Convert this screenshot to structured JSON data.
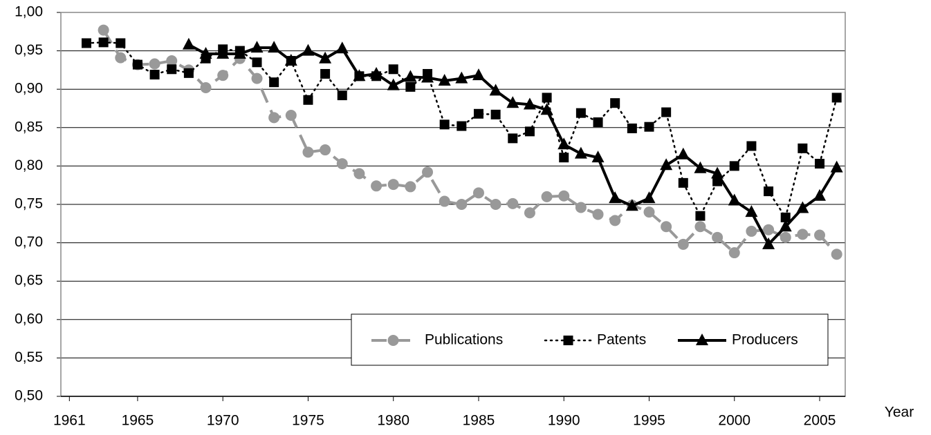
{
  "chart_data": {
    "type": "line",
    "x_label": "Year",
    "x": [
      1962,
      1963,
      1964,
      1965,
      1966,
      1967,
      1968,
      1969,
      1970,
      1971,
      1972,
      1973,
      1974,
      1975,
      1976,
      1977,
      1978,
      1979,
      1980,
      1981,
      1982,
      1983,
      1984,
      1985,
      1986,
      1987,
      1988,
      1989,
      1990,
      1991,
      1992,
      1993,
      1994,
      1995,
      1996,
      1997,
      1998,
      1999,
      2000,
      2001,
      2002,
      2003,
      2004,
      2005,
      2006
    ],
    "series": [
      {
        "name": "Publications",
        "color": "#999999",
        "marker": "circle",
        "line_style": "dashed",
        "values": [
          null,
          0.977,
          0.941,
          0.932,
          0.933,
          0.937,
          0.925,
          0.902,
          0.918,
          0.94,
          0.914,
          0.863,
          0.866,
          0.818,
          0.821,
          0.803,
          0.79,
          0.774,
          0.776,
          0.773,
          0.792,
          0.754,
          0.75,
          0.765,
          0.75,
          0.751,
          0.739,
          0.76,
          0.761,
          0.746,
          0.737,
          0.729,
          0.749,
          0.74,
          0.721,
          0.698,
          0.721,
          0.707,
          0.687,
          0.715,
          0.717,
          0.707,
          0.711,
          0.71,
          0.685
        ]
      },
      {
        "name": "Patents",
        "color": "#000000",
        "marker": "square",
        "line_style": "dotted",
        "values": [
          0.96,
          0.961,
          0.96,
          0.932,
          0.919,
          0.926,
          0.921,
          0.94,
          0.952,
          0.95,
          0.935,
          0.909,
          0.937,
          0.886,
          0.92,
          0.892,
          0.917,
          0.917,
          0.926,
          0.903,
          0.92,
          0.854,
          0.852,
          0.868,
          0.867,
          0.836,
          0.845,
          0.889,
          0.811,
          0.869,
          0.857,
          0.882,
          0.849,
          0.851,
          0.87,
          0.778,
          0.735,
          0.78,
          0.8,
          0.826,
          0.767,
          0.733,
          0.823,
          0.803,
          0.889
        ]
      },
      {
        "name": "Producers",
        "color": "#000000",
        "marker": "triangle",
        "line_style": "solid",
        "values": [
          null,
          null,
          null,
          null,
          null,
          null,
          0.958,
          0.946,
          0.946,
          0.946,
          0.954,
          0.954,
          0.937,
          0.95,
          0.94,
          0.953,
          0.917,
          0.92,
          0.905,
          0.916,
          0.915,
          0.911,
          0.914,
          0.918,
          0.898,
          0.882,
          0.88,
          0.873,
          0.828,
          0.816,
          0.811,
          0.758,
          0.748,
          0.758,
          0.801,
          0.815,
          0.797,
          0.79,
          0.755,
          0.74,
          0.698,
          0.721,
          0.745,
          0.761,
          0.798
        ]
      }
    ],
    "xlim": [
      1960.5,
      2006.5
    ],
    "xticks": [
      1961,
      1965,
      1970,
      1975,
      1980,
      1985,
      1990,
      1995,
      2000,
      2005
    ],
    "ylim": [
      0.5,
      1.0
    ],
    "yticks": [
      {
        "value": 0.5,
        "label": "0,50"
      },
      {
        "value": 0.55,
        "label": "0,55"
      },
      {
        "value": 0.6,
        "label": "0,60"
      },
      {
        "value": 0.65,
        "label": "0,65"
      },
      {
        "value": 0.7,
        "label": "0,70"
      },
      {
        "value": 0.75,
        "label": "0,75"
      },
      {
        "value": 0.8,
        "label": "0,80"
      },
      {
        "value": 0.85,
        "label": "0,85"
      },
      {
        "value": 0.9,
        "label": "0,90"
      },
      {
        "value": 0.95,
        "label": "0,95"
      },
      {
        "value": 1.0,
        "label": "1,00"
      }
    ],
    "grid": true,
    "legend": "bottom-right"
  }
}
